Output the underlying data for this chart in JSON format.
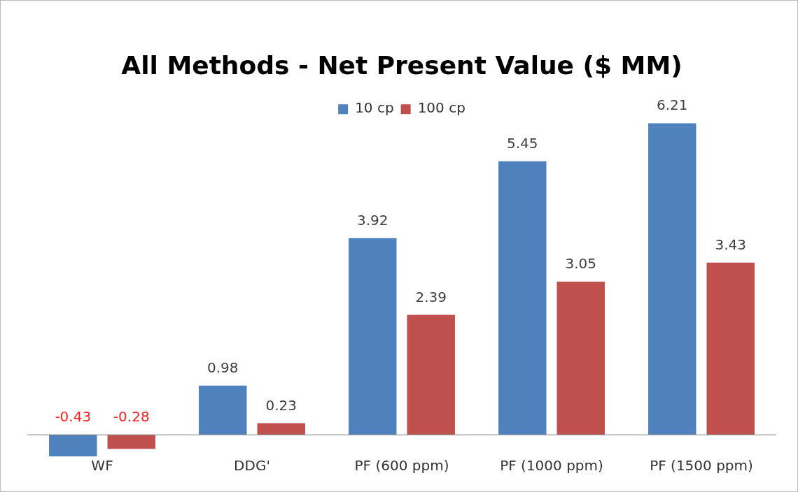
{
  "chart_data": {
    "type": "bar",
    "title": "All Methods - Net Present Value ($ MM)",
    "categories": [
      "WF",
      "DDG'",
      "PF (600 ppm)",
      "PF (1000 ppm)",
      "PF (1500 ppm)"
    ],
    "series": [
      {
        "name": "10 cp",
        "color": "#4f81bd",
        "values": [
          -0.43,
          0.98,
          3.92,
          5.45,
          6.21
        ]
      },
      {
        "name": "100 cp",
        "color": "#c0504d",
        "values": [
          -0.28,
          0.23,
          2.39,
          3.05,
          3.43
        ]
      }
    ],
    "data_labels": true,
    "legend": "top",
    "grid": false
  }
}
